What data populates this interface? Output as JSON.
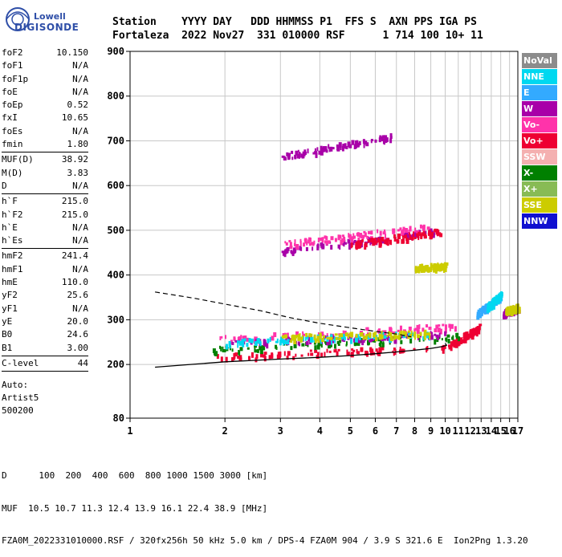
{
  "logo": {
    "top": "Lowell",
    "bottom": "DIGISONDE"
  },
  "header": {
    "line1": "Station    YYYY DAY   DDD HHMMSS P1  FFS S  AXN PPS IGA PS",
    "line2": "Fortaleza  2022 Nov27  331 010000 RSF      1 714 100 10+ 11"
  },
  "params": [
    {
      "label": "foF2",
      "value": "10.150"
    },
    {
      "label": "foF1",
      "value": "N/A"
    },
    {
      "label": "foF1p",
      "value": "N/A"
    },
    {
      "label": "foE",
      "value": "N/A"
    },
    {
      "label": "foEp",
      "value": "0.52"
    },
    {
      "label": "fxI",
      "value": "10.65"
    },
    {
      "label": "foEs",
      "value": "N/A"
    },
    {
      "label": "fmin",
      "value": "1.80"
    },
    {
      "sep": true
    },
    {
      "label": "MUF(D)",
      "value": "38.92"
    },
    {
      "label": "M(D)",
      "value": "3.83"
    },
    {
      "label": "D",
      "value": "N/A"
    },
    {
      "sep": true
    },
    {
      "label": "h`F",
      "value": "215.0"
    },
    {
      "label": "h`F2",
      "value": "215.0"
    },
    {
      "label": "h`E",
      "value": "N/A"
    },
    {
      "label": "h`Es",
      "value": "N/A"
    },
    {
      "sep": true
    },
    {
      "label": "hmF2",
      "value": "241.4"
    },
    {
      "label": "hmF1",
      "value": "N/A"
    },
    {
      "label": "hmE",
      "value": "110.0"
    },
    {
      "label": "yF2",
      "value": "25.6"
    },
    {
      "label": "yF1",
      "value": "N/A"
    },
    {
      "label": "yE",
      "value": "20.0"
    },
    {
      "label": "B0",
      "value": "24.6"
    },
    {
      "label": "B1",
      "value": "3.00"
    },
    {
      "sep": true
    },
    {
      "label": "C-level",
      "value": "44"
    },
    {
      "sep": true
    }
  ],
  "auto": [
    "Auto:",
    "Artist5",
    "500200"
  ],
  "legend": [
    {
      "label": "NoVal",
      "color": "#8c8c8c"
    },
    {
      "label": "NNE",
      "color": "#00d8f0"
    },
    {
      "label": "E",
      "color": "#33aaff"
    },
    {
      "label": "W",
      "color": "#a800a8"
    },
    {
      "label": "Vo-",
      "color": "#ff33aa"
    },
    {
      "label": "Vo+",
      "color": "#ee0033"
    },
    {
      "label": "SSW",
      "color": "#f4b0b0"
    },
    {
      "label": "X-",
      "color": "#008000"
    },
    {
      "label": "X+",
      "color": "#88bb55"
    },
    {
      "label": "SSE",
      "color": "#cccc00"
    },
    {
      "label": "NNW",
      "color": "#1010d0"
    }
  ],
  "footer": {
    "line1": "D      100  200  400  600  800 1000 1500 3000 [km]",
    "line2": "MUF  10.5 10.7 11.3 12.4 13.9 16.1 22.4 38.9 [MHz]",
    "line3": "FZA0M_2022331010000.RSF / 320fx256h 50 kHz 5.0 km / DPS-4 FZA0M 904 / 3.9 S 321.6 E  Ion2Png 1.3.20"
  },
  "chart_data": {
    "type": "scatter",
    "title": "",
    "xlabel": "",
    "ylabel": "",
    "x_scale": "log",
    "xlim": [
      1,
      17
    ],
    "ylim": [
      80,
      900
    ],
    "x_ticks": [
      1,
      2,
      3,
      4,
      5,
      6,
      7,
      8,
      9,
      10,
      11,
      12,
      13,
      14,
      15,
      16,
      17
    ],
    "y_ticks": [
      80,
      200,
      300,
      400,
      500,
      600,
      700,
      800,
      900
    ],
    "grid": true,
    "legend_position": "right",
    "profile_solid": {
      "name": "",
      "x": [
        1.2,
        2,
        3,
        4,
        5,
        6,
        7,
        8,
        9,
        9.8,
        10.1,
        10.0
      ],
      "y": [
        194,
        206,
        212,
        216,
        220,
        224,
        228,
        232,
        236,
        240,
        243,
        247
      ]
    },
    "profile_dashed": {
      "name": "",
      "x": [
        1.2,
        1.6,
        2.0,
        2.6,
        3.2,
        4.0,
        5.0,
        6.0,
        7.0,
        7.8
      ],
      "y": [
        362,
        348,
        335,
        320,
        305,
        292,
        282,
        274,
        268,
        262
      ]
    },
    "traces": [
      {
        "name": "F2 O-trace",
        "color": "#ee0033",
        "y_base": 218,
        "x_start": 1.8,
        "x_end": 10.2,
        "rise": 22
      },
      {
        "name": "F2 O-trace cusp",
        "color": "#ee0033",
        "y_base": 245,
        "x_start": 10.2,
        "x_end": 12.8,
        "rise": 40
      },
      {
        "name": "F2 X-trace",
        "color": "#008000",
        "y_base": 235,
        "x_start": 1.8,
        "x_end": 11.4,
        "rise": 30
      },
      {
        "name": "spread",
        "color": "#ff33aa",
        "y_base": 258,
        "x_start": 1.8,
        "x_end": 11.0,
        "rise": 30
      },
      {
        "name": "spread W",
        "color": "#a800a8",
        "y_base": 250,
        "x_start": 2.0,
        "x_end": 10.0,
        "rise": 20
      },
      {
        "name": "spread NNE",
        "color": "#00d8f0",
        "y_base": 252,
        "x_start": 2.0,
        "x_end": 9.0,
        "rise": 18
      },
      {
        "name": "spread SSE",
        "color": "#cccc00",
        "y_base": 262,
        "x_start": 3.0,
        "x_end": 9.0,
        "rise": 10
      },
      {
        "name": "2-hop W",
        "color": "#a800a8",
        "y_base": 455,
        "x_start": 3.0,
        "x_end": 9.4,
        "rise": 45
      },
      {
        "name": "2-hop Vo-",
        "color": "#ff33aa",
        "y_base": 470,
        "x_start": 3.0,
        "x_end": 9.0,
        "rise": 40
      },
      {
        "name": "2-hop Vo+",
        "color": "#ee0033",
        "y_base": 470,
        "x_start": 5.0,
        "x_end": 9.6,
        "rise": 30
      },
      {
        "name": "3-hop W",
        "color": "#a800a8",
        "y_base": 667,
        "x_start": 3.0,
        "x_end": 6.8,
        "rise": 45
      },
      {
        "name": "SSE 420",
        "color": "#cccc00",
        "y_base": 418,
        "x_start": 8.0,
        "x_end": 10.0,
        "rise": 4
      },
      {
        "name": "high f E",
        "color": "#33aaff",
        "y_base": 315,
        "x_start": 12.5,
        "x_end": 15.0,
        "rise": 40
      },
      {
        "name": "high f NNE",
        "color": "#00d8f0",
        "y_base": 330,
        "x_start": 13.5,
        "x_end": 15.0,
        "rise": 30
      },
      {
        "name": "right band",
        "color": "#a800a8",
        "y_base": 318,
        "x_start": 15.2,
        "x_end": 17.0,
        "rise": 10
      },
      {
        "name": "right band SSE",
        "color": "#cccc00",
        "y_base": 322,
        "x_start": 15.5,
        "x_end": 17.0,
        "rise": 8
      }
    ]
  }
}
